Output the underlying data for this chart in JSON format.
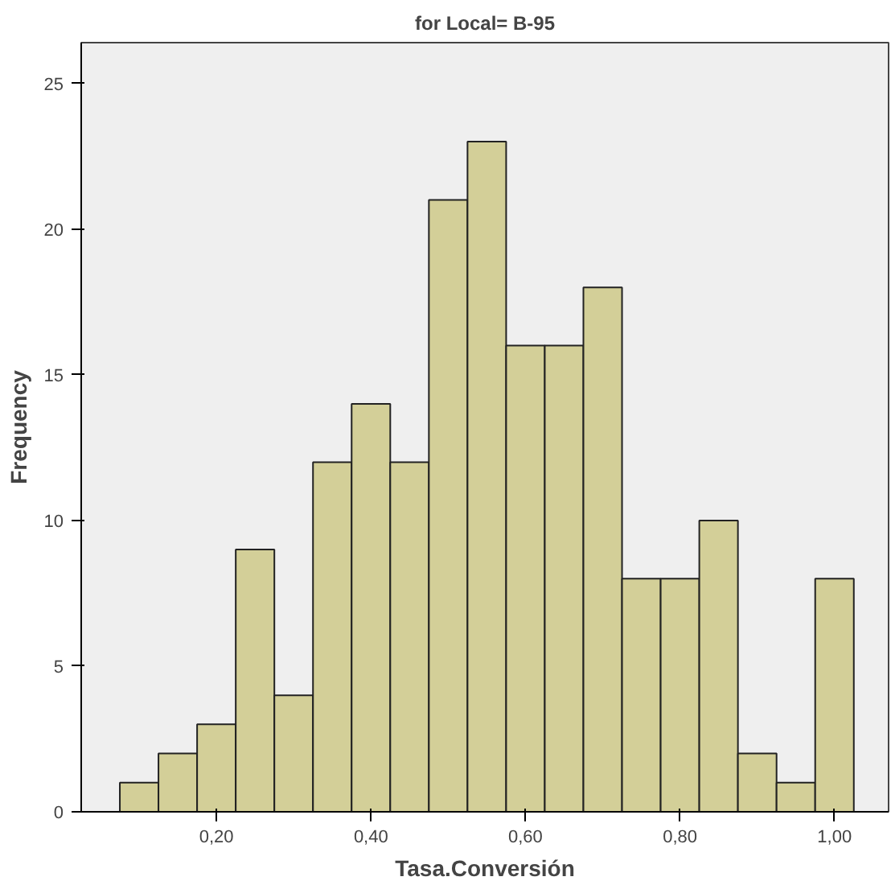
{
  "chart_data": {
    "type": "histogram",
    "title": "for Local= B-95",
    "xlabel": "Tasa.Conversión",
    "ylabel": "Frequency",
    "bins": [
      0.075,
      0.125,
      0.175,
      0.225,
      0.275,
      0.325,
      0.375,
      0.425,
      0.475,
      0.525,
      0.575,
      0.625,
      0.675,
      0.725,
      0.775,
      0.825,
      0.875,
      0.925,
      0.975,
      1.025
    ],
    "values": [
      1,
      2,
      3,
      9,
      4,
      12,
      14,
      12,
      21,
      23,
      16,
      16,
      18,
      8,
      8,
      10,
      2,
      1,
      8
    ],
    "color": "#d3cf98",
    "xlim": [
      0.025,
      1.07
    ],
    "ylim": [
      0,
      26.4
    ],
    "xticks": [
      {
        "value": 0.2,
        "label": "0,20"
      },
      {
        "value": 0.4,
        "label": "0,40"
      },
      {
        "value": 0.6,
        "label": "0,60"
      },
      {
        "value": 0.8,
        "label": "0,80"
      },
      {
        "value": 1.0,
        "label": "1,00"
      }
    ],
    "yticks": [
      0,
      5,
      10,
      15,
      20,
      25
    ],
    "grid": false
  }
}
